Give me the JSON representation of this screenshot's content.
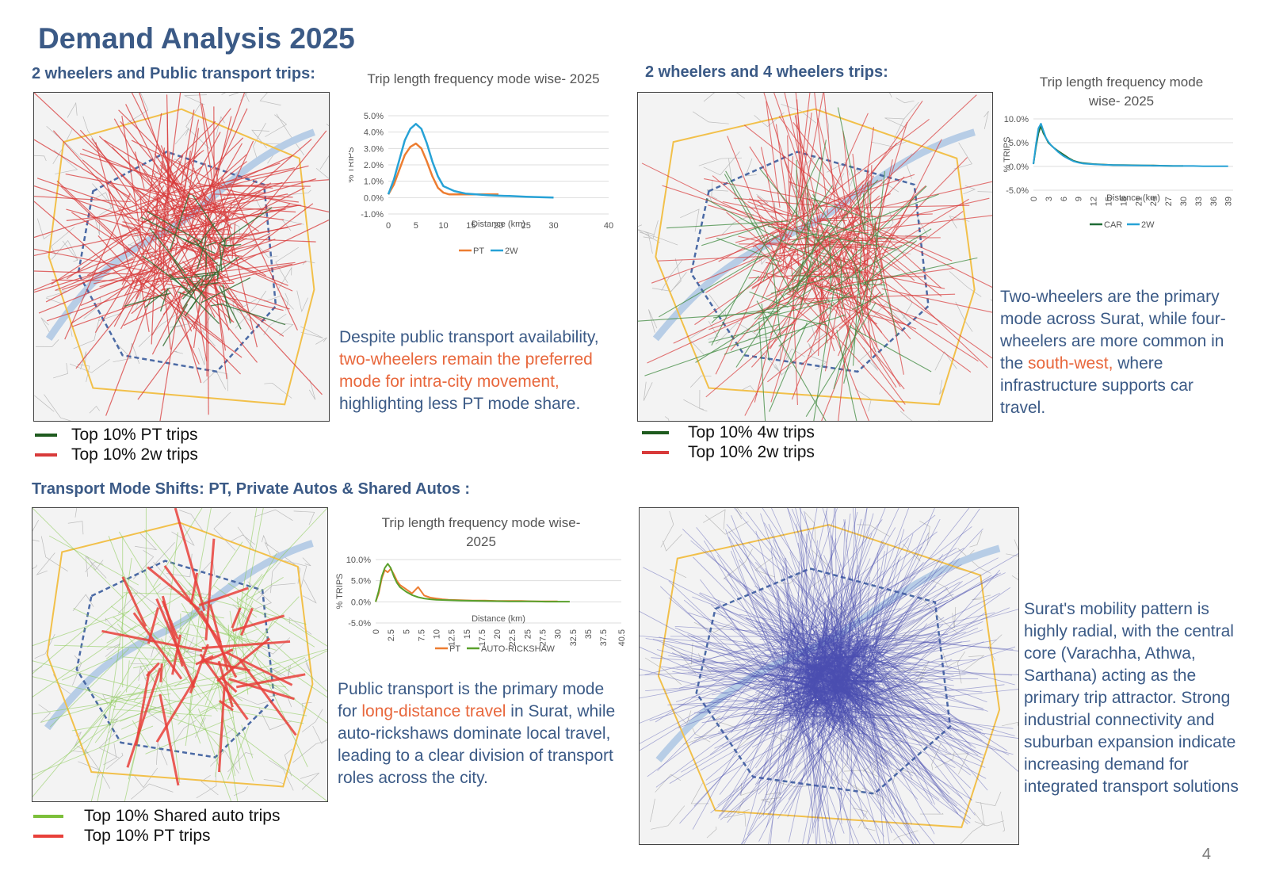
{
  "page": {
    "title": "Demand Analysis 2025",
    "page_number": "4"
  },
  "sections": {
    "s1": "2 wheelers and Public transport trips:",
    "s2": "2 wheelers and 4 wheelers trips:",
    "s3": "Transport Mode Shifts: PT, Private Autos & Shared Autos :"
  },
  "legends": {
    "map1": [
      {
        "label": "Top 10% PT trips",
        "color": "#1f5b1f"
      },
      {
        "label": "Top 10% 2w trips",
        "color": "#d83a3a"
      }
    ],
    "map2": [
      {
        "label": "Top 10% 4w trips",
        "color": "#1f5b1f"
      },
      {
        "label": "Top 10% 2w trips",
        "color": "#d83a3a"
      }
    ],
    "map3": [
      {
        "label": "Top 10% Shared auto trips",
        "color": "#7cbf3a"
      },
      {
        "label": "Top 10% PT trips",
        "color": "#e8403a"
      }
    ]
  },
  "paragraphs": {
    "p1": {
      "a": "Despite public transport availability, ",
      "b": "two-wheelers remain the preferred mode for intra-city movement,",
      "c": " highlighting less PT mode share."
    },
    "p2": {
      "a": "Two-wheelers are the primary mode across Surat, while four-wheelers are more common in the ",
      "b": "south-west,",
      "c": " where infrastructure supports car travel."
    },
    "p3": {
      "a": "Public transport is the primary mode for ",
      "b": "long-distance travel",
      "c": " in Surat, while auto-rickshaws dominate local travel, leading to a clear division of transport roles across the city."
    },
    "p4": {
      "a": "Surat's mobility pattern is highly radial, with the central core (Varachha, Athwa, Sarthana) acting as the primary trip attractor. Strong industrial connectivity and suburban expansion indicate increasing demand for integrated transport solutions"
    }
  },
  "chart_data": [
    {
      "type": "line",
      "title": "Trip length frequency mode wise- 2025",
      "xlabel": "Distance (km)",
      "ylabel": "% TRIPS",
      "xlim": [
        0,
        40
      ],
      "ylim": [
        -1.0,
        5.0
      ],
      "x_ticks": [
        "0",
        "5",
        "10",
        "15",
        "20",
        "25",
        "30",
        "40"
      ],
      "y_ticks": [
        "-1.0%",
        "0.0%",
        "1.0%",
        "2.0%",
        "3.0%",
        "4.0%",
        "5.0%"
      ],
      "legend_position": "bottom",
      "grid": true,
      "series": [
        {
          "name": "PT",
          "color": "#ed7d31",
          "x": [
            0,
            1,
            2,
            3,
            4,
            5,
            6,
            7,
            8,
            9,
            10,
            11,
            12,
            14,
            16,
            18,
            20
          ],
          "y": [
            0.2,
            0.8,
            1.7,
            2.6,
            3.1,
            3.3,
            3.0,
            2.2,
            1.3,
            0.6,
            0.3,
            0.2,
            0.2,
            0.2,
            0.2,
            0.2,
            0.2
          ]
        },
        {
          "name": "2W",
          "color": "#27a2d6",
          "x": [
            0,
            1,
            2,
            3,
            4,
            5,
            6,
            7,
            8,
            9,
            10,
            12,
            14,
            16,
            18,
            20,
            22,
            25,
            28,
            30
          ],
          "y": [
            0.2,
            1.1,
            2.3,
            3.5,
            4.2,
            4.5,
            4.2,
            3.3,
            2.2,
            1.3,
            0.7,
            0.4,
            0.25,
            0.2,
            0.15,
            0.12,
            0.1,
            0.05,
            0.02,
            0.0
          ]
        }
      ]
    },
    {
      "type": "line",
      "title": "Trip length frequency mode wise- 2025",
      "xlabel": "Distance (km)",
      "ylabel": "% TRIPS",
      "xlim": [
        0,
        40
      ],
      "ylim": [
        -5.0,
        10.0
      ],
      "x_ticks": [
        "0",
        "3",
        "6",
        "9",
        "12",
        "15",
        "18",
        "21",
        "24",
        "27",
        "30",
        "33",
        "36",
        "39"
      ],
      "y_ticks": [
        "-5.0%",
        "0.0%",
        "5.0%",
        "10.0%"
      ],
      "legend_position": "bottom",
      "grid": true,
      "series": [
        {
          "name": "CAR",
          "color": "#1f6b35",
          "x": [
            0,
            0.5,
            1,
            1.5,
            2,
            2.5,
            3,
            3.5,
            4,
            5,
            6,
            7,
            8,
            9,
            10,
            12,
            14,
            16,
            18,
            20,
            22,
            24,
            26,
            28,
            30
          ],
          "y": [
            0.5,
            4.0,
            7.0,
            8.5,
            7.0,
            6.0,
            5.0,
            4.5,
            4.0,
            3.2,
            2.5,
            1.8,
            1.2,
            0.9,
            0.7,
            0.5,
            0.4,
            0.3,
            0.3,
            0.25,
            0.2,
            0.2,
            0.15,
            0.1,
            0.1
          ]
        },
        {
          "name": "2W",
          "color": "#27a2d6",
          "x": [
            0,
            0.5,
            1,
            1.5,
            2,
            2.5,
            3,
            3.5,
            4,
            5,
            6,
            7,
            8,
            9,
            10,
            12,
            14,
            16,
            18,
            20,
            22,
            24,
            26,
            28,
            30,
            32,
            34,
            36,
            38,
            39
          ],
          "y": [
            0.5,
            4.5,
            8.0,
            9.0,
            7.5,
            6.0,
            5.2,
            4.5,
            4.0,
            3.0,
            2.2,
            1.6,
            1.1,
            0.8,
            0.6,
            0.45,
            0.35,
            0.3,
            0.25,
            0.2,
            0.2,
            0.15,
            0.15,
            0.1,
            0.1,
            0.1,
            0.05,
            0.05,
            0.05,
            0.05
          ]
        }
      ]
    },
    {
      "type": "line",
      "title": "Trip length frequency mode wise- 2025",
      "xlabel": "Distance (km)",
      "ylabel": "% TRIPS",
      "xlim": [
        0,
        40.5
      ],
      "ylim": [
        -5.0,
        10.0
      ],
      "x_ticks": [
        "0",
        "2.5",
        "5",
        "7.5",
        "10",
        "12.5",
        "15",
        "17.5",
        "20",
        "22.5",
        "25",
        "27.5",
        "30",
        "32.5",
        "35",
        "37.5",
        "40.5"
      ],
      "y_ticks": [
        "-5.0%",
        "0.0%",
        "5.0%",
        "10.0%"
      ],
      "legend_position": "bottom",
      "grid": true,
      "series": [
        {
          "name": "PT",
          "color": "#ed7d31",
          "x": [
            0,
            0.5,
            1,
            1.5,
            2,
            2.5,
            3,
            3.5,
            4,
            5,
            6,
            7,
            8,
            9,
            10,
            11,
            12,
            14,
            16,
            18,
            20,
            22,
            24,
            26,
            28,
            30
          ],
          "y": [
            0,
            2.0,
            5.5,
            7.5,
            7.0,
            7.8,
            6.5,
            5.0,
            4.0,
            3.0,
            2.0,
            3.5,
            1.5,
            1.0,
            0.8,
            0.6,
            0.5,
            0.4,
            0.3,
            0.3,
            0.2,
            0.2,
            0.2,
            0.1,
            0.1,
            0.1
          ]
        },
        {
          "name": "AUTO-RICKSHAW",
          "color": "#5aa02c",
          "x": [
            0,
            0.5,
            1,
            1.5,
            2,
            2.5,
            3,
            3.5,
            4,
            5,
            6,
            7,
            8,
            9,
            10,
            12,
            14,
            16,
            18,
            20,
            22,
            24,
            26,
            28,
            30,
            32
          ],
          "y": [
            0,
            2.5,
            6.0,
            8.0,
            9.0,
            8.0,
            6.0,
            4.5,
            3.5,
            2.4,
            1.6,
            1.1,
            0.8,
            0.6,
            0.5,
            0.4,
            0.3,
            0.25,
            0.2,
            0.15,
            0.1,
            0.1,
            0.1,
            0.05,
            0.05,
            0.05
          ]
        }
      ]
    }
  ]
}
